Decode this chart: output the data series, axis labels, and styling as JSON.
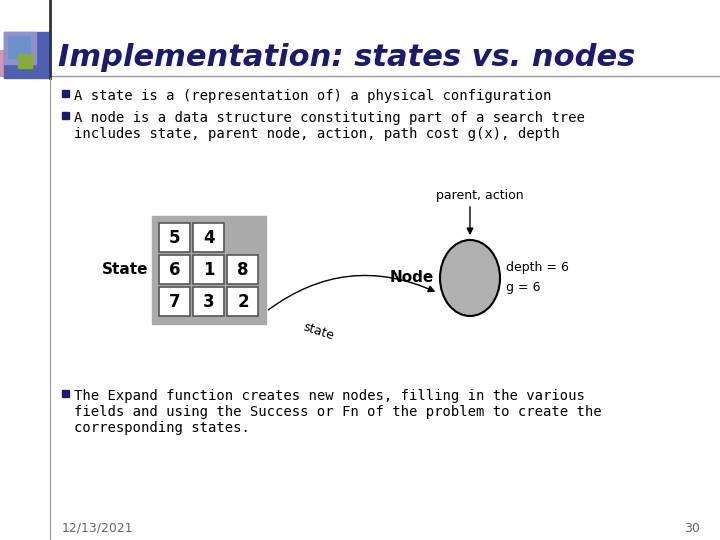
{
  "title": "Implementation: states vs. nodes",
  "title_color": "#1a1a6e",
  "title_fontsize": 22,
  "bg_color": "#ffffff",
  "bullet1": "A state is a (representation of) a physical configuration",
  "bullet2a": "A node is a data structure constituting part of a search tree",
  "bullet2b": "includes state, parent node, action, path cost g(x), depth",
  "bullet3a": "The Expand function creates new nodes, filling in the various",
  "bullet3b": "fields and using the Success or Fn of the problem to create the",
  "bullet3c": "corresponding states.",
  "date": "12/13/2021",
  "page": "30",
  "grid_values": [
    [
      "5",
      "4",
      ""
    ],
    [
      "6",
      "1",
      "8"
    ],
    [
      "7",
      "3",
      "2"
    ]
  ],
  "node_label": "Node",
  "state_label": "State",
  "depth_label": "depth = 6",
  "g_label": "g = 6",
  "parent_action_label": "parent, action",
  "state_arrow_label": "state",
  "bullet_color": "#1a1a6e",
  "text_color": "#000000",
  "grid_bg_color": "#aaaaaa",
  "cell_color": "#ffffff",
  "cell_shaded": "#cccccc",
  "node_fill": "#b0b0b0",
  "node_edge": "#000000",
  "sq1_color": "#5060b0",
  "sq2_color": "#9090cc",
  "sq3_color": "#7090cc",
  "sq4_color": "#cc99bb",
  "sq5_color": "#88aa44"
}
